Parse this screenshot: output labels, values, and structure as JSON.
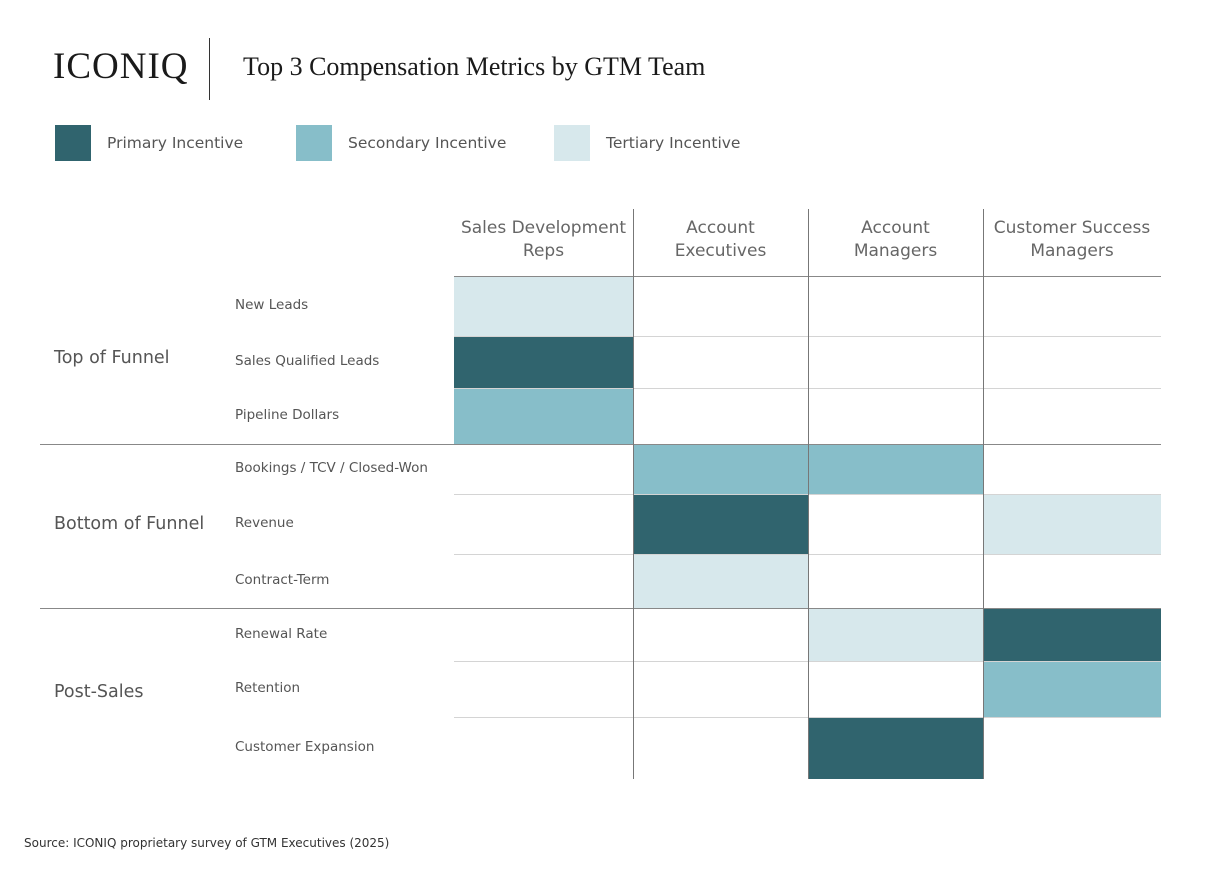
{
  "brand": {
    "logo_text": "ICONIQ"
  },
  "title": "Top 3 Compensation Metrics by GTM Team",
  "legend": [
    {
      "label": "Primary Incentive",
      "color": "#30646e"
    },
    {
      "label": "Secondary Incentive",
      "color": "#87bec9"
    },
    {
      "label": "Tertiary Incentive",
      "color": "#d7e8ec"
    }
  ],
  "source": "Source: ICONIQ proprietary survey of GTM Executives (2025)",
  "chart_data": {
    "type": "heatmap",
    "title": "Top 3 Compensation Metrics by GTM Team",
    "columns": [
      {
        "line1": "Sales Development",
        "line2": "Reps"
      },
      {
        "line1": "Account",
        "line2": "Executives"
      },
      {
        "line1": "Account",
        "line2": "Managers"
      },
      {
        "line1": "Customer Success",
        "line2": "Managers"
      }
    ],
    "groups": [
      {
        "label": "Top of Funnel",
        "rows": [
          "New Leads",
          "Sales Qualified Leads",
          "Pipeline Dollars"
        ]
      },
      {
        "label": "Bottom of Funnel",
        "rows": [
          "Bookings / TCV / Closed-Won",
          "Revenue",
          "Contract-Term"
        ]
      },
      {
        "label": "Post-Sales",
        "rows": [
          "Renewal Rate",
          "Retention",
          "Customer Expansion"
        ]
      }
    ],
    "levels": [
      "",
      "Primary Incentive",
      "Secondary Incentive",
      "Tertiary Incentive"
    ],
    "matrix": [
      [
        3,
        0,
        0,
        0
      ],
      [
        1,
        0,
        0,
        0
      ],
      [
        2,
        0,
        0,
        0
      ],
      [
        0,
        2,
        2,
        0
      ],
      [
        0,
        1,
        0,
        3
      ],
      [
        0,
        3,
        0,
        0
      ],
      [
        0,
        0,
        3,
        1
      ],
      [
        0,
        0,
        0,
        2
      ],
      [
        0,
        0,
        1,
        0
      ]
    ]
  }
}
